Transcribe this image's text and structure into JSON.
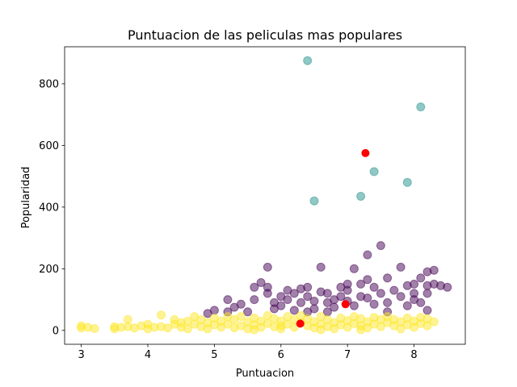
{
  "chart_data": {
    "type": "scatter",
    "title": "Puntuacion de las peliculas mas populares",
    "xlabel": "Puntuacion",
    "ylabel": "Popularidad",
    "xlim": [
      2.75,
      8.77
    ],
    "ylim": [
      -45,
      920
    ],
    "xticks": [
      3,
      4,
      5,
      6,
      7,
      8
    ],
    "yticks": [
      0,
      200,
      400,
      600,
      800
    ],
    "grid": false,
    "legend": "none",
    "colors": {
      "cluster_low": "#fde725",
      "cluster_mid": "#440154",
      "cluster_high": "#21918c",
      "centroid": "#ff0000"
    },
    "series": [
      {
        "color_key": "cluster_high",
        "points": [
          [
            6.4,
            875
          ],
          [
            8.1,
            725
          ],
          [
            7.4,
            515
          ],
          [
            7.9,
            480
          ],
          [
            6.5,
            420
          ],
          [
            7.2,
            435
          ]
        ]
      },
      {
        "color_key": "cluster_mid",
        "points": [
          [
            4.9,
            55
          ],
          [
            5.0,
            65
          ],
          [
            5.2,
            100
          ],
          [
            5.2,
            60
          ],
          [
            5.3,
            75
          ],
          [
            5.4,
            85
          ],
          [
            5.5,
            60
          ],
          [
            5.6,
            100
          ],
          [
            5.6,
            140
          ],
          [
            5.7,
            155
          ],
          [
            5.8,
            205
          ],
          [
            5.8,
            140
          ],
          [
            5.8,
            120
          ],
          [
            5.9,
            90
          ],
          [
            5.9,
            70
          ],
          [
            6.0,
            110
          ],
          [
            6.0,
            80
          ],
          [
            6.1,
            100
          ],
          [
            6.2,
            120
          ],
          [
            6.2,
            65
          ],
          [
            6.3,
            135
          ],
          [
            6.3,
            90
          ],
          [
            6.4,
            140
          ],
          [
            6.4,
            110
          ],
          [
            6.5,
            95
          ],
          [
            6.5,
            70
          ],
          [
            6.6,
            205
          ],
          [
            6.6,
            125
          ],
          [
            6.7,
            120
          ],
          [
            6.7,
            90
          ],
          [
            6.8,
            100
          ],
          [
            6.8,
            75
          ],
          [
            6.9,
            140
          ],
          [
            6.9,
            110
          ],
          [
            7.0,
            130
          ],
          [
            7.0,
            150
          ],
          [
            7.0,
            95
          ],
          [
            7.1,
            200
          ],
          [
            7.1,
            80
          ],
          [
            7.2,
            150
          ],
          [
            7.2,
            110
          ],
          [
            7.3,
            245
          ],
          [
            7.3,
            165
          ],
          [
            7.3,
            105
          ],
          [
            7.4,
            140
          ],
          [
            7.4,
            85
          ],
          [
            7.5,
            275
          ],
          [
            7.5,
            120
          ],
          [
            7.6,
            170
          ],
          [
            7.6,
            90
          ],
          [
            7.7,
            130
          ],
          [
            7.8,
            205
          ],
          [
            7.8,
            110
          ],
          [
            7.9,
            145
          ],
          [
            7.9,
            80
          ],
          [
            8.0,
            150
          ],
          [
            8.0,
            120
          ],
          [
            8.0,
            100
          ],
          [
            8.1,
            170
          ],
          [
            8.1,
            90
          ],
          [
            8.2,
            190
          ],
          [
            8.2,
            145
          ],
          [
            8.2,
            120
          ],
          [
            8.3,
            195
          ],
          [
            8.3,
            150
          ],
          [
            8.4,
            145
          ],
          [
            8.5,
            140
          ],
          [
            6.1,
            130
          ],
          [
            6.4,
            60
          ],
          [
            6.7,
            60
          ],
          [
            7.6,
            60
          ],
          [
            8.2,
            65
          ]
        ]
      },
      {
        "color_key": "cluster_low",
        "points": [
          [
            3.0,
            15
          ],
          [
            3.0,
            8
          ],
          [
            3.1,
            10
          ],
          [
            3.2,
            6
          ],
          [
            3.5,
            12
          ],
          [
            3.5,
            5
          ],
          [
            3.6,
            10
          ],
          [
            3.7,
            35
          ],
          [
            3.7,
            12
          ],
          [
            3.8,
            8
          ],
          [
            3.9,
            15
          ],
          [
            4.0,
            5
          ],
          [
            4.0,
            20
          ],
          [
            4.1,
            10
          ],
          [
            4.2,
            50
          ],
          [
            4.2,
            12
          ],
          [
            4.3,
            8
          ],
          [
            4.4,
            20
          ],
          [
            4.4,
            35
          ],
          [
            4.5,
            10
          ],
          [
            4.6,
            30
          ],
          [
            4.6,
            5
          ],
          [
            4.7,
            45
          ],
          [
            4.7,
            20
          ],
          [
            4.8,
            12
          ],
          [
            4.8,
            35
          ],
          [
            4.9,
            25
          ],
          [
            4.9,
            5
          ],
          [
            5.0,
            40
          ],
          [
            5.0,
            18
          ],
          [
            5.1,
            10
          ],
          [
            5.1,
            30
          ],
          [
            5.2,
            45
          ],
          [
            5.2,
            20
          ],
          [
            5.3,
            8
          ],
          [
            5.3,
            35
          ],
          [
            5.4,
            15
          ],
          [
            5.4,
            45
          ],
          [
            5.5,
            28
          ],
          [
            5.5,
            5
          ],
          [
            5.6,
            40
          ],
          [
            5.6,
            18
          ],
          [
            5.7,
            30
          ],
          [
            5.7,
            10
          ],
          [
            5.8,
            48
          ],
          [
            5.8,
            22
          ],
          [
            5.9,
            12
          ],
          [
            5.9,
            38
          ],
          [
            6.0,
            30
          ],
          [
            6.0,
            5
          ],
          [
            6.1,
            45
          ],
          [
            6.1,
            20
          ],
          [
            6.2,
            10
          ],
          [
            6.2,
            35
          ],
          [
            6.3,
            25
          ],
          [
            6.3,
            48
          ],
          [
            6.4,
            15
          ],
          [
            6.4,
            38
          ],
          [
            6.5,
            28
          ],
          [
            6.5,
            8
          ],
          [
            6.6,
            45
          ],
          [
            6.6,
            20
          ],
          [
            6.7,
            12
          ],
          [
            6.7,
            35
          ],
          [
            6.8,
            25
          ],
          [
            6.8,
            5
          ],
          [
            6.9,
            40
          ],
          [
            6.9,
            18
          ],
          [
            7.0,
            10
          ],
          [
            7.0,
            32
          ],
          [
            7.1,
            22
          ],
          [
            7.1,
            45
          ],
          [
            7.2,
            15
          ],
          [
            7.2,
            38
          ],
          [
            7.3,
            28
          ],
          [
            7.3,
            8
          ],
          [
            7.4,
            42
          ],
          [
            7.4,
            20
          ],
          [
            7.5,
            12
          ],
          [
            7.5,
            35
          ],
          [
            7.6,
            25
          ],
          [
            7.6,
            45
          ],
          [
            7.7,
            15
          ],
          [
            7.7,
            35
          ],
          [
            7.8,
            5
          ],
          [
            7.8,
            28
          ],
          [
            7.9,
            40
          ],
          [
            7.9,
            18
          ],
          [
            8.0,
            10
          ],
          [
            8.0,
            30
          ],
          [
            8.1,
            22
          ],
          [
            8.1,
            42
          ],
          [
            8.2,
            15
          ],
          [
            8.2,
            38
          ],
          [
            8.3,
            28
          ],
          [
            5.6,
            2
          ],
          [
            6.0,
            15
          ],
          [
            6.6,
            2
          ],
          [
            7.2,
            2
          ],
          [
            4.5,
            25
          ]
        ]
      },
      {
        "color_key": "centroid",
        "points": [
          [
            7.27,
            575
          ],
          [
            6.97,
            85
          ],
          [
            6.29,
            22
          ]
        ]
      }
    ]
  }
}
